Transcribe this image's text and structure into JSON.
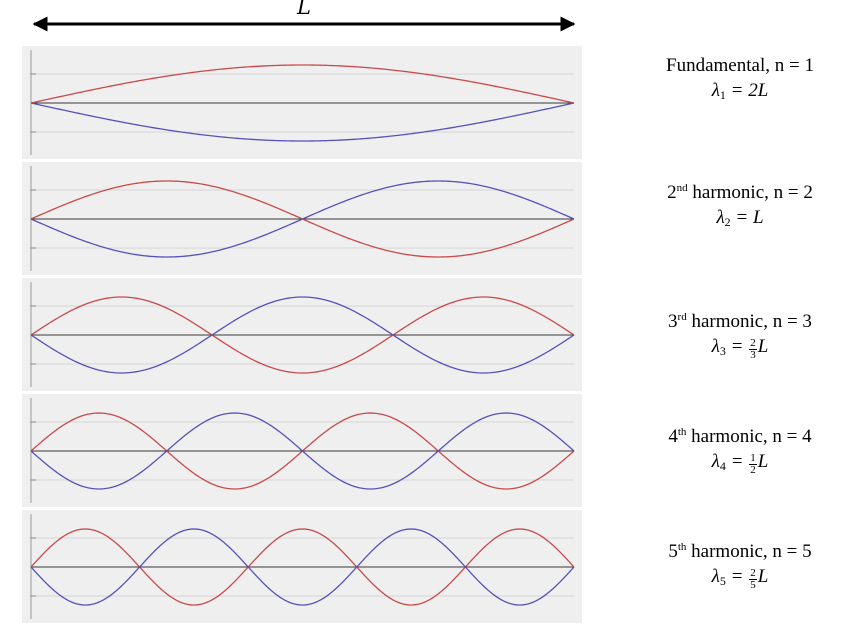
{
  "header": {
    "length_label": "L"
  },
  "colors": {
    "wave_red": "#c94a4a",
    "wave_blue": "#5652b8",
    "baseline": "#3a3a3a",
    "panel_bg": "#efefef"
  },
  "harmonics": [
    {
      "n": 1,
      "title_prefix": "Fundamental",
      "title_sup": "",
      "title_rest": ", n = 1",
      "lambda_sub": "1",
      "lambda_eq": "= 2L",
      "frac_num": "",
      "frac_den": "",
      "frac_tail": ""
    },
    {
      "n": 2,
      "title_prefix": "2",
      "title_sup": "nd",
      "title_rest": " harmonic, n = 2",
      "lambda_sub": "2",
      "lambda_eq": "= L",
      "frac_num": "",
      "frac_den": "",
      "frac_tail": ""
    },
    {
      "n": 3,
      "title_prefix": "3",
      "title_sup": "rd",
      "title_rest": " harmonic, n = 3",
      "lambda_sub": "3",
      "lambda_eq": "=",
      "frac_num": "2",
      "frac_den": "3",
      "frac_tail": "L"
    },
    {
      "n": 4,
      "title_prefix": "4",
      "title_sup": "th",
      "title_rest": " harmonic, n = 4",
      "lambda_sub": "4",
      "lambda_eq": "=",
      "frac_num": "1",
      "frac_den": "2",
      "frac_tail": "L"
    },
    {
      "n": 5,
      "title_prefix": "5",
      "title_sup": "th",
      "title_rest": " harmonic, n = 5",
      "lambda_sub": "5",
      "lambda_eq": "=",
      "frac_num": "2",
      "frac_den": "5",
      "frac_tail": "L"
    }
  ]
}
